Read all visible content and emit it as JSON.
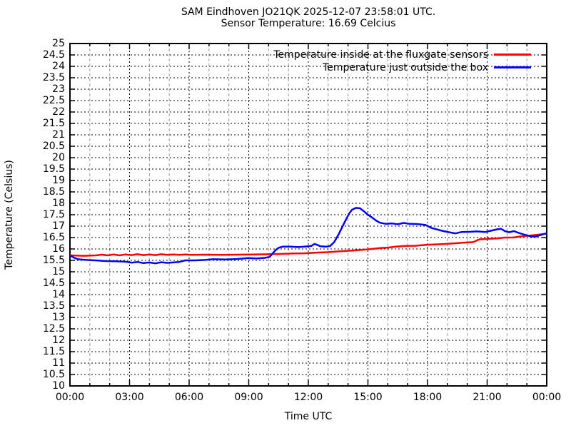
{
  "header": {
    "title": "SAM Eindhoven JO21QK 2025-12-07 23:58:01 UTC.",
    "subtitle": "Sensor Temperature: 16.69 Celcius"
  },
  "chart_data": {
    "type": "line",
    "title": "SAM Eindhoven JO21QK 2025-12-07 23:58:01 UTC.",
    "subtitle": "Sensor Temperature: 16.69 Celcius",
    "xlabel": "Time UTC",
    "ylabel": "Temperature (Celsius)",
    "xlim_hours": [
      0,
      24
    ],
    "ylim": [
      10,
      25
    ],
    "ytick_step": 0.5,
    "ytick_labels": [
      "25",
      "24.5",
      "24",
      "23.5",
      "23",
      "22.5",
      "22",
      "21.5",
      "21",
      "20.5",
      "20",
      "19.5",
      "19",
      "18.5",
      "18",
      "17.5",
      "17",
      "16.5",
      "16",
      "15.5",
      "15",
      "14.5",
      "14",
      "13.5",
      "13",
      "12.5",
      "12",
      "11.5",
      "11",
      "10.5",
      "10"
    ],
    "xtick_labels": [
      "00:00",
      "03:00",
      "06:00",
      "09:00",
      "12:00",
      "15:00",
      "18:00",
      "21:00",
      "00:00"
    ],
    "xtick_major_hours": 3,
    "xtick_minor_hours": 1,
    "grid": true,
    "grid_major_color": "#000000",
    "grid_minor_color": "#9a9a9a",
    "background_color": "#ffffff",
    "text_color": "#000000",
    "legend_position": "top-right-inside",
    "series": [
      {
        "name": "Temperature inside at the fluxgate sensors",
        "color": "#ff0000",
        "points": [
          [
            0,
            15.72
          ],
          [
            0.7,
            15.7
          ],
          [
            1.3,
            15.72
          ],
          [
            1.6,
            15.75
          ],
          [
            1.9,
            15.72
          ],
          [
            2.2,
            15.76
          ],
          [
            2.5,
            15.72
          ],
          [
            2.8,
            15.76
          ],
          [
            3.1,
            15.73
          ],
          [
            3.4,
            15.77
          ],
          [
            3.7,
            15.73
          ],
          [
            4.0,
            15.76
          ],
          [
            4.3,
            15.73
          ],
          [
            4.6,
            15.77
          ],
          [
            4.9,
            15.74
          ],
          [
            5.2,
            15.76
          ],
          [
            5.5,
            15.74
          ],
          [
            5.8,
            15.76
          ],
          [
            6.1,
            15.74
          ],
          [
            6.8,
            15.75
          ],
          [
            7.6,
            15.74
          ],
          [
            8.4,
            15.75
          ],
          [
            9.2,
            15.76
          ],
          [
            10.0,
            15.77
          ],
          [
            10.6,
            15.78
          ],
          [
            11.2,
            15.8
          ],
          [
            11.8,
            15.81
          ],
          [
            12.4,
            15.84
          ],
          [
            13.0,
            15.86
          ],
          [
            13.6,
            15.9
          ],
          [
            14.2,
            15.93
          ],
          [
            14.8,
            15.97
          ],
          [
            15.2,
            16.0
          ],
          [
            15.6,
            16.04
          ],
          [
            16.0,
            16.06
          ],
          [
            16.4,
            16.1
          ],
          [
            16.9,
            16.13
          ],
          [
            17.4,
            16.14
          ],
          [
            17.9,
            16.18
          ],
          [
            18.4,
            16.2
          ],
          [
            18.9,
            16.22
          ],
          [
            19.4,
            16.25
          ],
          [
            19.9,
            16.28
          ],
          [
            20.3,
            16.3
          ],
          [
            20.6,
            16.42
          ],
          [
            21.0,
            16.44
          ],
          [
            21.5,
            16.46
          ],
          [
            21.9,
            16.5
          ],
          [
            22.3,
            16.5
          ],
          [
            22.7,
            16.55
          ],
          [
            23.1,
            16.58
          ],
          [
            23.5,
            16.62
          ],
          [
            23.8,
            16.65
          ],
          [
            24,
            16.68
          ]
        ]
      },
      {
        "name": "Temperature just outside the box",
        "color": "#0000ff",
        "points": [
          [
            0,
            15.72
          ],
          [
            0.2,
            15.62
          ],
          [
            0.4,
            15.55
          ],
          [
            0.8,
            15.52
          ],
          [
            1.3,
            15.5
          ],
          [
            1.8,
            15.47
          ],
          [
            2.3,
            15.46
          ],
          [
            2.8,
            15.44
          ],
          [
            3.1,
            15.4
          ],
          [
            3.4,
            15.43
          ],
          [
            3.7,
            15.38
          ],
          [
            4.0,
            15.41
          ],
          [
            4.3,
            15.37
          ],
          [
            4.6,
            15.42
          ],
          [
            4.9,
            15.39
          ],
          [
            5.2,
            15.41
          ],
          [
            5.5,
            15.43
          ],
          [
            5.8,
            15.5
          ],
          [
            6.3,
            15.5
          ],
          [
            6.8,
            15.52
          ],
          [
            7.2,
            15.55
          ],
          [
            7.8,
            15.54
          ],
          [
            8.4,
            15.56
          ],
          [
            9.0,
            15.6
          ],
          [
            9.4,
            15.58
          ],
          [
            9.8,
            15.61
          ],
          [
            10.05,
            15.65
          ],
          [
            10.2,
            15.8
          ],
          [
            10.35,
            15.95
          ],
          [
            10.5,
            16.05
          ],
          [
            10.7,
            16.1
          ],
          [
            11.1,
            16.1
          ],
          [
            11.5,
            16.08
          ],
          [
            11.9,
            16.11
          ],
          [
            12.15,
            16.13
          ],
          [
            12.3,
            16.22
          ],
          [
            12.45,
            16.18
          ],
          [
            12.6,
            16.12
          ],
          [
            12.9,
            16.1
          ],
          [
            13.1,
            16.13
          ],
          [
            13.3,
            16.3
          ],
          [
            13.5,
            16.6
          ],
          [
            13.7,
            16.95
          ],
          [
            13.9,
            17.3
          ],
          [
            14.05,
            17.55
          ],
          [
            14.2,
            17.72
          ],
          [
            14.4,
            17.8
          ],
          [
            14.6,
            17.78
          ],
          [
            14.8,
            17.65
          ],
          [
            15.0,
            17.5
          ],
          [
            15.2,
            17.38
          ],
          [
            15.4,
            17.25
          ],
          [
            15.6,
            17.15
          ],
          [
            15.9,
            17.1
          ],
          [
            16.2,
            17.12
          ],
          [
            16.5,
            17.08
          ],
          [
            16.8,
            17.14
          ],
          [
            17.1,
            17.1
          ],
          [
            17.5,
            17.09
          ],
          [
            17.9,
            17.05
          ],
          [
            18.2,
            16.92
          ],
          [
            18.5,
            16.85
          ],
          [
            18.8,
            16.78
          ],
          [
            19.1,
            16.73
          ],
          [
            19.4,
            16.68
          ],
          [
            19.7,
            16.74
          ],
          [
            20.1,
            16.75
          ],
          [
            20.5,
            16.77
          ],
          [
            20.9,
            16.74
          ],
          [
            21.2,
            16.8
          ],
          [
            21.5,
            16.86
          ],
          [
            21.7,
            16.88
          ],
          [
            21.9,
            16.78
          ],
          [
            22.1,
            16.73
          ],
          [
            22.35,
            16.78
          ],
          [
            22.6,
            16.7
          ],
          [
            22.9,
            16.62
          ],
          [
            23.2,
            16.55
          ],
          [
            23.45,
            16.54
          ],
          [
            23.65,
            16.6
          ],
          [
            23.85,
            16.65
          ],
          [
            24,
            16.68
          ]
        ]
      }
    ]
  }
}
